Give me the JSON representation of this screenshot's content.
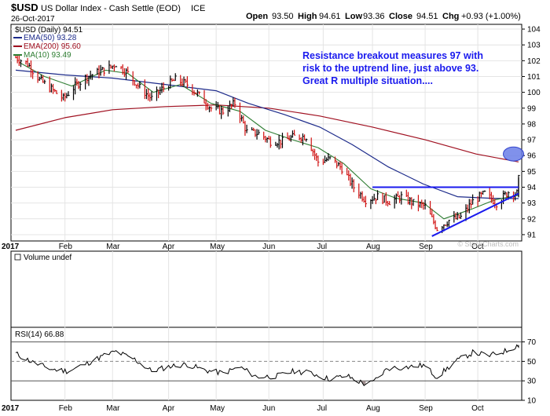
{
  "header": {
    "symbol": "$USD",
    "name": "US Dollar Index - Cash Settle (EOD)",
    "exchange": "ICE",
    "date": "26-Oct-2017",
    "open_label": "Open",
    "open": "93.50",
    "high_label": "High",
    "high": "94.61",
    "low_label": "Low",
    "low": "93.36",
    "close_label": "Close",
    "close": "94.51",
    "chg_label": "Chg",
    "chg": "+0.93 (+1.00%)",
    "watermark": "© StockCharts.com"
  },
  "legend": {
    "price": "$USD (Daily) 94.51",
    "ema50": "EMA(50) 93.28",
    "ema200": "EMA(200) 95.60",
    "ma10": "MA(10) 93.49"
  },
  "annotation": {
    "lines": [
      "Resistance breakout measures 97 with",
      "risk to the uptrend line, just above 93.",
      "Great R multiple situation...."
    ]
  },
  "volume_label": "Volume undef",
  "rsi_label": "RSI(14) 66.88",
  "colors": {
    "price": "#000000",
    "ema50": "#1c2a8a",
    "ema200": "#a01020",
    "ma10": "#2e7d32",
    "annotation": "#1a1aee",
    "trendline": "#1a1aee",
    "target_circle": "#6a7ee8",
    "grid": "#e4e4e4",
    "rsi_oversold_fill": "#a09090"
  },
  "chart_data": [
    {
      "type": "line",
      "title": "$USD US Dollar Index - Cash Settle (EOD)",
      "x_months": [
        "2017",
        "Feb",
        "Mar",
        "Apr",
        "May",
        "Jun",
        "Jul",
        "Aug",
        "Sep",
        "Oct"
      ],
      "x_range": [
        "2017-01-03",
        "2017-10-26"
      ],
      "ylim": [
        90.6,
        104.3
      ],
      "y_ticks": [
        91,
        92,
        93,
        94,
        95,
        96,
        97,
        98,
        99,
        100,
        101,
        102,
        103,
        104
      ],
      "grid": true,
      "series": [
        {
          "name": "$USD (Daily)",
          "style": "ohlc-bars",
          "points": [
            [
              "2017-01-03",
              102.2
            ],
            [
              "2017-01-10",
              101.8
            ],
            [
              "2017-01-17",
              100.8
            ],
            [
              "2017-01-24",
              100.2
            ],
            [
              "2017-01-31",
              99.6
            ],
            [
              "2017-02-07",
              100.4
            ],
            [
              "2017-02-14",
              101.0
            ],
            [
              "2017-02-21",
              101.3
            ],
            [
              "2017-02-28",
              101.6
            ],
            [
              "2017-03-03",
              101.8
            ],
            [
              "2017-03-10",
              101.2
            ],
            [
              "2017-03-17",
              100.3
            ],
            [
              "2017-03-24",
              99.6
            ],
            [
              "2017-03-31",
              100.3
            ],
            [
              "2017-04-07",
              100.8
            ],
            [
              "2017-04-14",
              100.5
            ],
            [
              "2017-04-21",
              99.8
            ],
            [
              "2017-04-28",
              99.0
            ],
            [
              "2017-05-05",
              98.8
            ],
            [
              "2017-05-12",
              99.3
            ],
            [
              "2017-05-19",
              97.5
            ],
            [
              "2017-05-26",
              97.4
            ],
            [
              "2017-06-02",
              96.9
            ],
            [
              "2017-06-09",
              96.9
            ],
            [
              "2017-06-16",
              97.2
            ],
            [
              "2017-06-23",
              97.2
            ],
            [
              "2017-06-30",
              95.6
            ],
            [
              "2017-07-07",
              95.8
            ],
            [
              "2017-07-14",
              95.2
            ],
            [
              "2017-07-21",
              94.0
            ],
            [
              "2017-07-28",
              93.2
            ],
            [
              "2017-08-04",
              93.4
            ],
            [
              "2017-08-11",
              93.1
            ],
            [
              "2017-08-18",
              93.4
            ],
            [
              "2017-08-25",
              93.0
            ],
            [
              "2017-09-01",
              92.8
            ],
            [
              "2017-09-08",
              91.4
            ],
            [
              "2017-09-15",
              91.9
            ],
            [
              "2017-09-22",
              92.1
            ],
            [
              "2017-09-29",
              93.1
            ],
            [
              "2017-10-06",
              93.6
            ],
            [
              "2017-10-13",
              93.0
            ],
            [
              "2017-10-20",
              93.7
            ],
            [
              "2017-10-25",
              93.6
            ],
            [
              "2017-10-26",
              94.51
            ]
          ]
        },
        {
          "name": "EMA(50)",
          "points": [
            [
              "2017-01-03",
              101.4
            ],
            [
              "2017-02-01",
              101.1
            ],
            [
              "2017-03-01",
              100.9
            ],
            [
              "2017-04-01",
              100.5
            ],
            [
              "2017-05-01",
              100.1
            ],
            [
              "2017-05-20",
              99.3
            ],
            [
              "2017-06-10",
              98.6
            ],
            [
              "2017-07-01",
              97.8
            ],
            [
              "2017-07-20",
              96.7
            ],
            [
              "2017-08-10",
              95.3
            ],
            [
              "2017-08-31",
              94.2
            ],
            [
              "2017-09-20",
              93.4
            ],
            [
              "2017-10-10",
              93.3
            ],
            [
              "2017-10-26",
              93.28
            ]
          ]
        },
        {
          "name": "EMA(200)",
          "points": [
            [
              "2017-01-03",
              97.6
            ],
            [
              "2017-02-01",
              98.4
            ],
            [
              "2017-03-01",
              98.9
            ],
            [
              "2017-04-01",
              99.1
            ],
            [
              "2017-05-01",
              99.2
            ],
            [
              "2017-06-01",
              99.0
            ],
            [
              "2017-07-01",
              98.5
            ],
            [
              "2017-08-01",
              97.8
            ],
            [
              "2017-09-01",
              97.0
            ],
            [
              "2017-10-01",
              96.1
            ],
            [
              "2017-10-26",
              95.6
            ]
          ]
        },
        {
          "name": "MA(10)",
          "points": [
            [
              "2017-01-05",
              101.9
            ],
            [
              "2017-01-20",
              101.0
            ],
            [
              "2017-02-05",
              100.4
            ],
            [
              "2017-02-25",
              101.4
            ],
            [
              "2017-03-10",
              101.2
            ],
            [
              "2017-03-25",
              100.0
            ],
            [
              "2017-04-10",
              100.5
            ],
            [
              "2017-04-28",
              99.3
            ],
            [
              "2017-05-15",
              98.8
            ],
            [
              "2017-05-30",
              97.6
            ],
            [
              "2017-06-15",
              97.0
            ],
            [
              "2017-06-30",
              96.5
            ],
            [
              "2017-07-15",
              95.5
            ],
            [
              "2017-07-31",
              93.9
            ],
            [
              "2017-08-15",
              93.3
            ],
            [
              "2017-08-31",
              93.0
            ],
            [
              "2017-09-12",
              92.0
            ],
            [
              "2017-09-28",
              92.6
            ],
            [
              "2017-10-12",
              93.2
            ],
            [
              "2017-10-26",
              93.49
            ]
          ]
        }
      ],
      "annotations": [
        {
          "kind": "horizontal-line",
          "y": 94,
          "from": "2017-08-01",
          "to": "2017-10-26"
        },
        {
          "kind": "trendline",
          "from": [
            "2017-09-05",
            90.9
          ],
          "to": [
            "2017-10-26",
            93.6
          ]
        },
        {
          "kind": "target-ellipse",
          "x": "2017-10-23",
          "y": 96.1
        }
      ]
    },
    {
      "type": "line",
      "title": "RSI(14)",
      "ylim": [
        10,
        85
      ],
      "y_ticks": [
        10,
        30,
        50,
        70
      ],
      "reference_lines": [
        30,
        50,
        70
      ],
      "grid": true,
      "series": [
        {
          "name": "RSI(14)",
          "points": [
            [
              "2017-01-03",
              58
            ],
            [
              "2017-01-13",
              49
            ],
            [
              "2017-01-24",
              42
            ],
            [
              "2017-02-03",
              40
            ],
            [
              "2017-02-14",
              48
            ],
            [
              "2017-02-24",
              56
            ],
            [
              "2017-03-03",
              60
            ],
            [
              "2017-03-14",
              52
            ],
            [
              "2017-03-24",
              40
            ],
            [
              "2017-04-04",
              45
            ],
            [
              "2017-04-14",
              47
            ],
            [
              "2017-04-24",
              41
            ],
            [
              "2017-05-05",
              38
            ],
            [
              "2017-05-15",
              44
            ],
            [
              "2017-05-25",
              34
            ],
            [
              "2017-06-06",
              35
            ],
            [
              "2017-06-16",
              40
            ],
            [
              "2017-06-26",
              38
            ],
            [
              "2017-07-06",
              32
            ],
            [
              "2017-07-17",
              35
            ],
            [
              "2017-07-27",
              27
            ],
            [
              "2017-08-01",
              28
            ],
            [
              "2017-08-10",
              43
            ],
            [
              "2017-08-21",
              44
            ],
            [
              "2017-08-31",
              46
            ],
            [
              "2017-09-08",
              34
            ],
            [
              "2017-09-19",
              50
            ],
            [
              "2017-09-29",
              59
            ],
            [
              "2017-10-09",
              56
            ],
            [
              "2017-10-19",
              61
            ],
            [
              "2017-10-26",
              66.88
            ]
          ]
        }
      ]
    }
  ]
}
